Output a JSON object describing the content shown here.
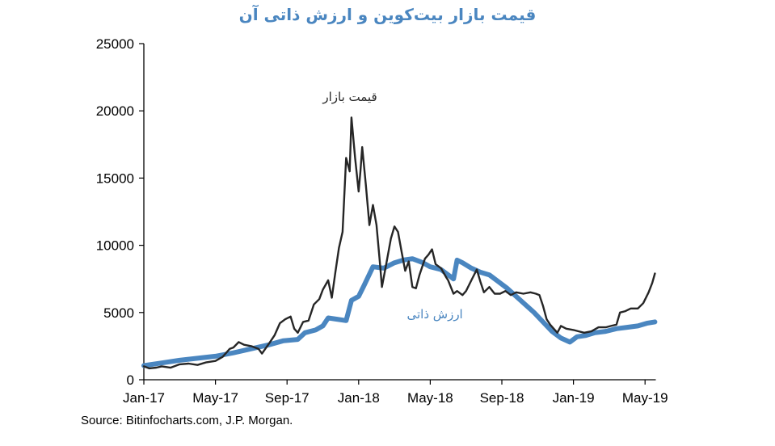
{
  "chart_data": {
    "type": "line",
    "title": "قیمت بازار بیت‌کوین و ارزش ذاتی آن",
    "xlabel": "",
    "ylabel": "",
    "ylim": [
      0,
      25000
    ],
    "yticks": [
      "0",
      "5000",
      "10000",
      "15000",
      "20000",
      "25000"
    ],
    "xlim_months_from_jan17": [
      0,
      28.6
    ],
    "xticks": [
      {
        "label": "Jan-17",
        "m": 0
      },
      {
        "label": "May-17",
        "m": 4
      },
      {
        "label": "Sep-17",
        "m": 8
      },
      {
        "label": "Jan-18",
        "m": 12
      },
      {
        "label": "May-18",
        "m": 16
      },
      {
        "label": "Sep-18",
        "m": 20
      },
      {
        "label": "Jan-19",
        "m": 24
      },
      {
        "label": "May-19",
        "m": 28
      }
    ],
    "grid": false,
    "legend": "inline annotations",
    "series": [
      {
        "name": "قیمت بازار",
        "color": "#262626",
        "label_pos": [
          11.8,
          21000
        ],
        "points": [
          [
            0,
            1000
          ],
          [
            0.3,
            850
          ],
          [
            0.7,
            900
          ],
          [
            1,
            1000
          ],
          [
            1.5,
            900
          ],
          [
            2,
            1150
          ],
          [
            2.5,
            1200
          ],
          [
            3,
            1100
          ],
          [
            3.5,
            1300
          ],
          [
            4,
            1400
          ],
          [
            4.4,
            1700
          ],
          [
            4.8,
            2300
          ],
          [
            5,
            2400
          ],
          [
            5.3,
            2800
          ],
          [
            5.6,
            2600
          ],
          [
            6,
            2500
          ],
          [
            6.4,
            2300
          ],
          [
            6.6,
            1950
          ],
          [
            7,
            2700
          ],
          [
            7.3,
            3300
          ],
          [
            7.6,
            4200
          ],
          [
            7.9,
            4500
          ],
          [
            8.2,
            4700
          ],
          [
            8.4,
            3800
          ],
          [
            8.6,
            3500
          ],
          [
            8.9,
            4300
          ],
          [
            9.2,
            4400
          ],
          [
            9.5,
            5600
          ],
          [
            9.8,
            6000
          ],
          [
            10,
            6700
          ],
          [
            10.3,
            7400
          ],
          [
            10.5,
            6100
          ],
          [
            10.7,
            8000
          ],
          [
            10.9,
            9800
          ],
          [
            11.1,
            11000
          ],
          [
            11.3,
            16500
          ],
          [
            11.5,
            15500
          ],
          [
            11.6,
            19500
          ],
          [
            11.8,
            16500
          ],
          [
            12,
            14000
          ],
          [
            12.1,
            15500
          ],
          [
            12.2,
            17300
          ],
          [
            12.4,
            14500
          ],
          [
            12.6,
            11500
          ],
          [
            12.8,
            13000
          ],
          [
            13,
            11500
          ],
          [
            13.2,
            8500
          ],
          [
            13.3,
            6900
          ],
          [
            13.5,
            8300
          ],
          [
            13.8,
            10500
          ],
          [
            14,
            11400
          ],
          [
            14.2,
            11000
          ],
          [
            14.4,
            9500
          ],
          [
            14.6,
            8100
          ],
          [
            14.8,
            8800
          ],
          [
            15,
            6900
          ],
          [
            15.2,
            6800
          ],
          [
            15.4,
            7800
          ],
          [
            15.7,
            9000
          ],
          [
            15.9,
            9300
          ],
          [
            16.1,
            9700
          ],
          [
            16.3,
            8600
          ],
          [
            16.6,
            8300
          ],
          [
            16.9,
            7600
          ],
          [
            17,
            7400
          ],
          [
            17.3,
            6400
          ],
          [
            17.5,
            6600
          ],
          [
            17.8,
            6300
          ],
          [
            18,
            6600
          ],
          [
            18.3,
            7400
          ],
          [
            18.6,
            8200
          ],
          [
            18.8,
            7300
          ],
          [
            19,
            6500
          ],
          [
            19.3,
            6900
          ],
          [
            19.6,
            6400
          ],
          [
            19.9,
            6400
          ],
          [
            20.2,
            6600
          ],
          [
            20.5,
            6300
          ],
          [
            20.8,
            6500
          ],
          [
            21.2,
            6400
          ],
          [
            21.6,
            6500
          ],
          [
            21.9,
            6400
          ],
          [
            22.1,
            6300
          ],
          [
            22.3,
            5500
          ],
          [
            22.5,
            4500
          ],
          [
            22.7,
            4100
          ],
          [
            22.9,
            3800
          ],
          [
            23.1,
            3500
          ],
          [
            23.3,
            4000
          ],
          [
            23.6,
            3800
          ],
          [
            24,
            3700
          ],
          [
            24.3,
            3600
          ],
          [
            24.6,
            3500
          ],
          [
            25,
            3600
          ],
          [
            25.4,
            3900
          ],
          [
            25.8,
            3900
          ],
          [
            26.1,
            4000
          ],
          [
            26.4,
            4100
          ],
          [
            26.6,
            5000
          ],
          [
            26.9,
            5100
          ],
          [
            27.2,
            5300
          ],
          [
            27.6,
            5300
          ],
          [
            27.9,
            5700
          ],
          [
            28.2,
            6500
          ],
          [
            28.4,
            7200
          ],
          [
            28.55,
            7900
          ]
        ]
      },
      {
        "name": "ارزش ذاتی",
        "color": "#4a86c0",
        "label_pos": [
          16.5,
          4800
        ],
        "points": [
          [
            0,
            1050
          ],
          [
            1,
            1250
          ],
          [
            2,
            1450
          ],
          [
            3,
            1600
          ],
          [
            4,
            1750
          ],
          [
            5,
            2000
          ],
          [
            6,
            2300
          ],
          [
            7,
            2600
          ],
          [
            7.8,
            2900
          ],
          [
            8.6,
            3000
          ],
          [
            9,
            3500
          ],
          [
            9.6,
            3700
          ],
          [
            10,
            4000
          ],
          [
            10.3,
            4600
          ],
          [
            10.8,
            4500
          ],
          [
            11.3,
            4400
          ],
          [
            11.6,
            5900
          ],
          [
            12,
            6200
          ],
          [
            12.3,
            7000
          ],
          [
            12.8,
            8400
          ],
          [
            13.4,
            8300
          ],
          [
            14,
            8700
          ],
          [
            14.5,
            8900
          ],
          [
            15,
            9000
          ],
          [
            15.6,
            8700
          ],
          [
            16,
            8400
          ],
          [
            16.6,
            8200
          ],
          [
            17,
            7800
          ],
          [
            17.3,
            7500
          ],
          [
            17.5,
            8900
          ],
          [
            17.8,
            8700
          ],
          [
            18.3,
            8300
          ],
          [
            18.8,
            8000
          ],
          [
            19.3,
            7800
          ],
          [
            19.8,
            7300
          ],
          [
            20.3,
            6800
          ],
          [
            20.8,
            6200
          ],
          [
            21.3,
            5600
          ],
          [
            21.8,
            5000
          ],
          [
            22.3,
            4300
          ],
          [
            22.8,
            3600
          ],
          [
            23.3,
            3100
          ],
          [
            23.8,
            2800
          ],
          [
            24.2,
            3200
          ],
          [
            24.7,
            3300
          ],
          [
            25.2,
            3500
          ],
          [
            25.8,
            3600
          ],
          [
            26.4,
            3800
          ],
          [
            27,
            3900
          ],
          [
            27.6,
            4000
          ],
          [
            28.1,
            4200
          ],
          [
            28.55,
            4300
          ]
        ]
      }
    ]
  },
  "source": "Source: Bitinfocharts.com, J.P. Morgan."
}
